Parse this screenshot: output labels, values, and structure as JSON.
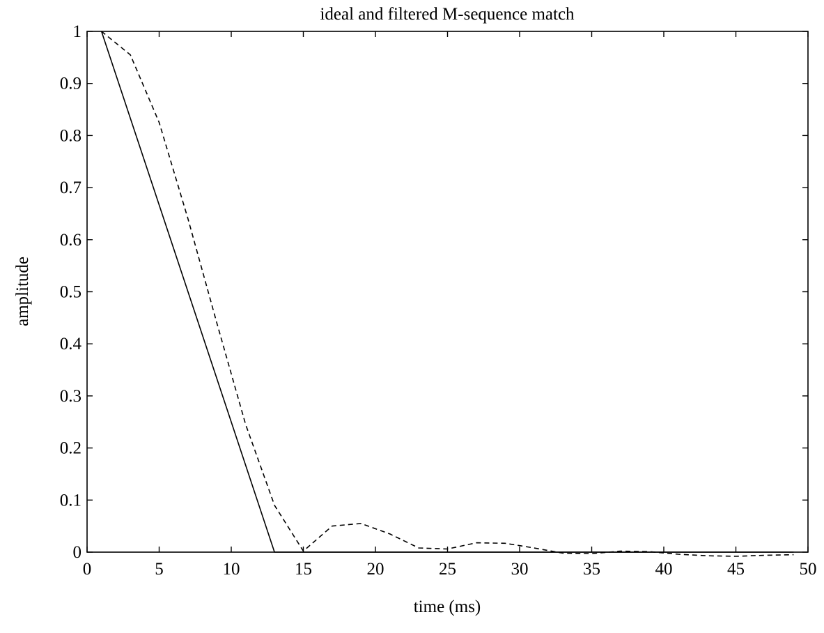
{
  "chart_data": {
    "type": "line",
    "title": "ideal and filtered M-sequence match",
    "xlabel": "time (ms)",
    "ylabel": "amplitude",
    "xlim": [
      0,
      50
    ],
    "ylim": [
      0,
      1
    ],
    "x_ticks": [
      0,
      5,
      10,
      15,
      20,
      25,
      30,
      35,
      40,
      45,
      50
    ],
    "x_tick_labels": [
      "0",
      "5",
      "10",
      "15",
      "20",
      "25",
      "30",
      "35",
      "40",
      "45",
      "50"
    ],
    "y_ticks": [
      0,
      0.1,
      0.2,
      0.3,
      0.4,
      0.5,
      0.6,
      0.7,
      0.8,
      0.9,
      1
    ],
    "y_tick_labels": [
      "0",
      "0.1",
      "0.2",
      "0.3",
      "0.4",
      "0.5",
      "0.6",
      "0.7",
      "0.8",
      "0.9",
      "1"
    ],
    "grid": false,
    "series": [
      {
        "style": "solid",
        "color": "#000000",
        "x": [
          1,
          13,
          15,
          25,
          35,
          49
        ],
        "y": [
          1.0,
          0.0,
          0.0,
          0.0,
          0.0,
          0.0
        ]
      },
      {
        "style": "dashed",
        "color": "#000000",
        "x": [
          1,
          3,
          5,
          7,
          9,
          11,
          13,
          15,
          17,
          19,
          21,
          23,
          25,
          27,
          29,
          31,
          33,
          35,
          37,
          39,
          41,
          43,
          45,
          47,
          49
        ],
        "y": [
          1.0,
          0.955,
          0.825,
          0.64,
          0.44,
          0.245,
          0.09,
          0.002,
          0.05,
          0.055,
          0.035,
          0.008,
          0.006,
          0.018,
          0.017,
          0.008,
          -0.002,
          -0.003,
          0.002,
          0.001,
          -0.004,
          -0.007,
          -0.008,
          -0.006,
          -0.005
        ]
      }
    ]
  }
}
